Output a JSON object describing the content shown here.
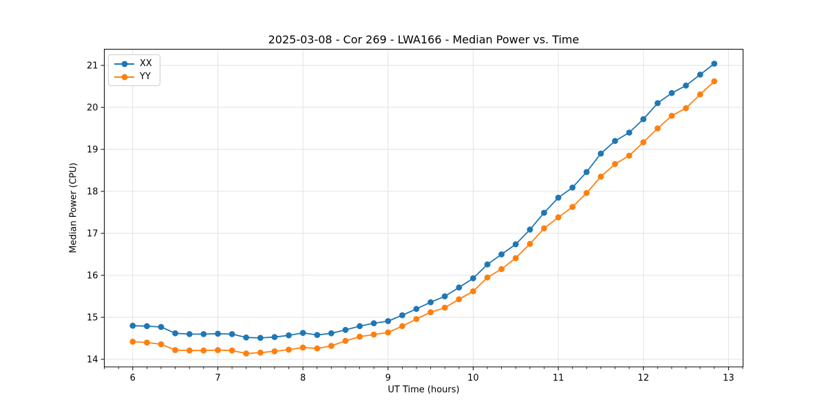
{
  "figure": {
    "background": "#ffffff",
    "frame_color": "#000000"
  },
  "chart_data": {
    "type": "line",
    "title": "2025-03-08 - Cor 269 - LWA166 - Median Power vs. Time",
    "xlabel": "UT Time (hours)",
    "ylabel": "Median Power (CPU)",
    "xlim": [
      5.666,
      13.171
    ],
    "ylim": [
      13.82,
      21.385
    ],
    "xticks": [
      6,
      7,
      8,
      9,
      10,
      11,
      12,
      13
    ],
    "yticks": [
      14,
      15,
      16,
      17,
      18,
      19,
      20,
      21
    ],
    "x_minor_step_hours": 0.16667,
    "grid": true,
    "grid_color": "#e2e2e2",
    "legend_position": "upper-left",
    "x": [
      6.0,
      6.167,
      6.333,
      6.5,
      6.667,
      6.833,
      7.0,
      7.167,
      7.333,
      7.5,
      7.667,
      7.833,
      8.0,
      8.167,
      8.333,
      8.5,
      8.667,
      8.833,
      9.0,
      9.167,
      9.333,
      9.5,
      9.667,
      9.833,
      10.0,
      10.167,
      10.333,
      10.5,
      10.667,
      10.833,
      11.0,
      11.167,
      11.333,
      11.5,
      11.667,
      11.833,
      12.0,
      12.167,
      12.333,
      12.5,
      12.667,
      12.833
    ],
    "series": [
      {
        "name": "XX",
        "color": "#1f77b4",
        "marker": "circle",
        "values": [
          14.8,
          14.79,
          14.77,
          14.62,
          14.6,
          14.6,
          14.61,
          14.6,
          14.52,
          14.51,
          14.53,
          14.57,
          14.63,
          14.58,
          14.62,
          14.7,
          14.79,
          14.86,
          14.91,
          15.05,
          15.2,
          15.36,
          15.5,
          15.71,
          15.93,
          16.26,
          16.5,
          16.74,
          17.09,
          17.49,
          17.85,
          18.09,
          18.46,
          18.9,
          19.2,
          19.4,
          19.72,
          20.1,
          20.34,
          20.52,
          20.78,
          21.04
        ]
      },
      {
        "name": "YY",
        "color": "#ff7f0e",
        "marker": "circle",
        "values": [
          14.42,
          14.4,
          14.36,
          14.22,
          14.21,
          14.21,
          14.22,
          14.21,
          14.14,
          14.16,
          14.19,
          14.23,
          14.28,
          14.26,
          14.32,
          14.44,
          14.54,
          14.59,
          14.64,
          14.79,
          14.96,
          15.12,
          15.23,
          15.43,
          15.62,
          15.95,
          16.15,
          16.41,
          16.75,
          17.12,
          17.38,
          17.63,
          17.96,
          18.35,
          18.65,
          18.85,
          19.17,
          19.5,
          19.8,
          19.98,
          20.31,
          20.62
        ]
      }
    ]
  }
}
